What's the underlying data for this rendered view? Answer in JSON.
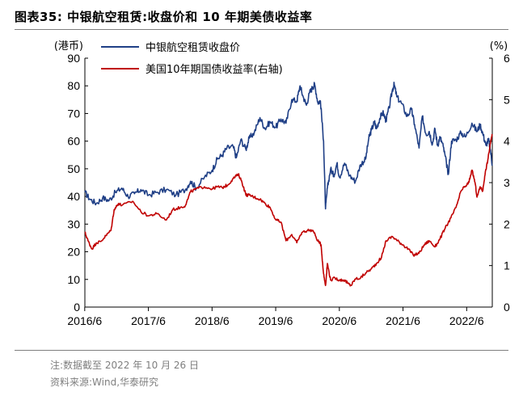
{
  "figure_label": "图表35:",
  "figure_title": "中银航空租赁:收盘价和 10 年期美债收益率",
  "note": "注:数据截至 2022 年 10 月 26 日",
  "source": "资料来源:Wind,华泰研究",
  "colors": {
    "blue": "#1f3f86",
    "red": "#c00000"
  },
  "chart_data": {
    "type": "line",
    "title": "中银航空租赁:收盘价和 10 年期美债收益率",
    "ylabel_left": "(港币)",
    "ylabel_right": "(%)",
    "ylim_left": [
      0,
      90
    ],
    "ylim_right": [
      0,
      6
    ],
    "yticks_left": [
      "90",
      "80",
      "70",
      "60",
      "50",
      "40",
      "30",
      "20",
      "10",
      "0"
    ],
    "yticks_right": [
      "6",
      "5",
      "4",
      "3",
      "2",
      "1",
      "0"
    ],
    "x_ticks": [
      "2016/6",
      "2017/6",
      "2018/6",
      "2019/6",
      "2020/6",
      "2021/6",
      "2022/6"
    ],
    "x_range": [
      2016.42,
      2022.82
    ],
    "legend": [
      "中银航空租赁收盘价",
      "美国10年期国债收益率(右轴)"
    ],
    "series": [
      {
        "name": "中银航空租赁收盘价",
        "axis": "left",
        "points": [
          [
            2016.42,
            41.5
          ],
          [
            2016.5,
            39.0
          ],
          [
            2016.6,
            37.5
          ],
          [
            2016.7,
            39.5
          ],
          [
            2016.8,
            38.5
          ],
          [
            2016.9,
            41.5
          ],
          [
            2017.0,
            43.0
          ],
          [
            2017.1,
            40.0
          ],
          [
            2017.2,
            41.0
          ],
          [
            2017.3,
            42.5
          ],
          [
            2017.42,
            40.5
          ],
          [
            2017.55,
            41.5
          ],
          [
            2017.7,
            42.5
          ],
          [
            2017.85,
            40.5
          ],
          [
            2018.0,
            42.5
          ],
          [
            2018.08,
            45.5
          ],
          [
            2018.17,
            43.0
          ],
          [
            2018.3,
            47.0
          ],
          [
            2018.42,
            49.5
          ],
          [
            2018.5,
            53.5
          ],
          [
            2018.58,
            55.0
          ],
          [
            2018.65,
            57.5
          ],
          [
            2018.75,
            58.0
          ],
          [
            2018.8,
            54.0
          ],
          [
            2018.87,
            60.5
          ],
          [
            2018.95,
            57.0
          ],
          [
            2019.0,
            61.0
          ],
          [
            2019.08,
            63.0
          ],
          [
            2019.17,
            68.5
          ],
          [
            2019.25,
            64.5
          ],
          [
            2019.33,
            67.0
          ],
          [
            2019.42,
            65.0
          ],
          [
            2019.5,
            68.0
          ],
          [
            2019.58,
            66.5
          ],
          [
            2019.67,
            75.0
          ],
          [
            2019.75,
            74.5
          ],
          [
            2019.8,
            80.0
          ],
          [
            2019.85,
            76.0
          ],
          [
            2019.9,
            73.0
          ],
          [
            2019.95,
            77.5
          ],
          [
            2020.0,
            79.5
          ],
          [
            2020.03,
            80.5
          ],
          [
            2020.08,
            74.0
          ],
          [
            2020.12,
            74.5
          ],
          [
            2020.17,
            60.0
          ],
          [
            2020.2,
            35.5
          ],
          [
            2020.23,
            43.0
          ],
          [
            2020.28,
            50.0
          ],
          [
            2020.33,
            47.5
          ],
          [
            2020.38,
            52.0
          ],
          [
            2020.42,
            47.0
          ],
          [
            2020.5,
            52.0
          ],
          [
            2020.58,
            47.5
          ],
          [
            2020.67,
            45.5
          ],
          [
            2020.75,
            51.5
          ],
          [
            2020.83,
            53.5
          ],
          [
            2020.88,
            61.0
          ],
          [
            2020.92,
            64.0
          ],
          [
            2020.97,
            67.0
          ],
          [
            2021.0,
            64.5
          ],
          [
            2021.05,
            68.0
          ],
          [
            2021.1,
            70.5
          ],
          [
            2021.15,
            67.5
          ],
          [
            2021.2,
            72.0
          ],
          [
            2021.25,
            78.5
          ],
          [
            2021.28,
            80.5
          ],
          [
            2021.32,
            76.0
          ],
          [
            2021.4,
            73.5
          ],
          [
            2021.48,
            69.0
          ],
          [
            2021.55,
            71.5
          ],
          [
            2021.6,
            66.0
          ],
          [
            2021.67,
            57.5
          ],
          [
            2021.72,
            69.0
          ],
          [
            2021.78,
            62.5
          ],
          [
            2021.83,
            63.5
          ],
          [
            2021.88,
            59.0
          ],
          [
            2021.92,
            64.5
          ],
          [
            2021.96,
            58.5
          ],
          [
            2022.0,
            61.5
          ],
          [
            2022.05,
            58.0
          ],
          [
            2022.1,
            52.0
          ],
          [
            2022.13,
            48.0
          ],
          [
            2022.18,
            60.0
          ],
          [
            2022.25,
            60.5
          ],
          [
            2022.33,
            63.0
          ],
          [
            2022.4,
            61.5
          ],
          [
            2022.5,
            66.5
          ],
          [
            2022.58,
            63.5
          ],
          [
            2022.63,
            66.0
          ],
          [
            2022.68,
            62.0
          ],
          [
            2022.72,
            58.5
          ],
          [
            2022.76,
            60.5
          ],
          [
            2022.79,
            57.0
          ],
          [
            2022.82,
            51.5
          ]
        ]
      },
      {
        "name": "美国10年期国债收益率(右轴)",
        "axis": "right",
        "points": [
          [
            2016.42,
            1.8
          ],
          [
            2016.47,
            1.6
          ],
          [
            2016.53,
            1.4
          ],
          [
            2016.6,
            1.55
          ],
          [
            2016.67,
            1.58
          ],
          [
            2016.75,
            1.72
          ],
          [
            2016.83,
            1.85
          ],
          [
            2016.88,
            2.35
          ],
          [
            2016.95,
            2.5
          ],
          [
            2017.0,
            2.45
          ],
          [
            2017.17,
            2.55
          ],
          [
            2017.3,
            2.3
          ],
          [
            2017.42,
            2.2
          ],
          [
            2017.55,
            2.25
          ],
          [
            2017.7,
            2.1
          ],
          [
            2017.8,
            2.35
          ],
          [
            2017.92,
            2.4
          ],
          [
            2018.0,
            2.45
          ],
          [
            2018.08,
            2.78
          ],
          [
            2018.17,
            2.85
          ],
          [
            2018.3,
            2.9
          ],
          [
            2018.42,
            2.85
          ],
          [
            2018.5,
            2.9
          ],
          [
            2018.58,
            2.88
          ],
          [
            2018.67,
            2.95
          ],
          [
            2018.75,
            3.1
          ],
          [
            2018.83,
            3.2
          ],
          [
            2018.88,
            3.05
          ],
          [
            2018.95,
            2.7
          ],
          [
            2019.0,
            2.7
          ],
          [
            2019.08,
            2.65
          ],
          [
            2019.17,
            2.6
          ],
          [
            2019.25,
            2.5
          ],
          [
            2019.33,
            2.4
          ],
          [
            2019.42,
            2.1
          ],
          [
            2019.5,
            2.05
          ],
          [
            2019.58,
            1.6
          ],
          [
            2019.67,
            1.75
          ],
          [
            2019.75,
            1.55
          ],
          [
            2019.83,
            1.8
          ],
          [
            2019.92,
            1.85
          ],
          [
            2020.0,
            1.85
          ],
          [
            2020.08,
            1.6
          ],
          [
            2020.13,
            1.5
          ],
          [
            2020.17,
            0.8
          ],
          [
            2020.2,
            0.52
          ],
          [
            2020.23,
            1.05
          ],
          [
            2020.28,
            0.65
          ],
          [
            2020.35,
            0.7
          ],
          [
            2020.42,
            0.65
          ],
          [
            2020.5,
            0.65
          ],
          [
            2020.55,
            0.57
          ],
          [
            2020.6,
            0.52
          ],
          [
            2020.67,
            0.68
          ],
          [
            2020.75,
            0.7
          ],
          [
            2020.83,
            0.82
          ],
          [
            2020.92,
            0.92
          ],
          [
            2021.0,
            1.05
          ],
          [
            2021.08,
            1.2
          ],
          [
            2021.15,
            1.6
          ],
          [
            2021.25,
            1.7
          ],
          [
            2021.33,
            1.6
          ],
          [
            2021.42,
            1.5
          ],
          [
            2021.5,
            1.4
          ],
          [
            2021.58,
            1.25
          ],
          [
            2021.67,
            1.3
          ],
          [
            2021.75,
            1.5
          ],
          [
            2021.83,
            1.6
          ],
          [
            2021.92,
            1.45
          ],
          [
            2022.0,
            1.65
          ],
          [
            2022.08,
            1.9
          ],
          [
            2022.17,
            2.15
          ],
          [
            2022.25,
            2.4
          ],
          [
            2022.33,
            2.8
          ],
          [
            2022.42,
            2.95
          ],
          [
            2022.45,
            3.0
          ],
          [
            2022.5,
            3.3
          ],
          [
            2022.55,
            3.0
          ],
          [
            2022.58,
            2.65
          ],
          [
            2022.63,
            2.9
          ],
          [
            2022.67,
            2.8
          ],
          [
            2022.7,
            3.15
          ],
          [
            2022.75,
            3.55
          ],
          [
            2022.79,
            3.95
          ],
          [
            2022.82,
            4.15
          ]
        ]
      }
    ]
  }
}
